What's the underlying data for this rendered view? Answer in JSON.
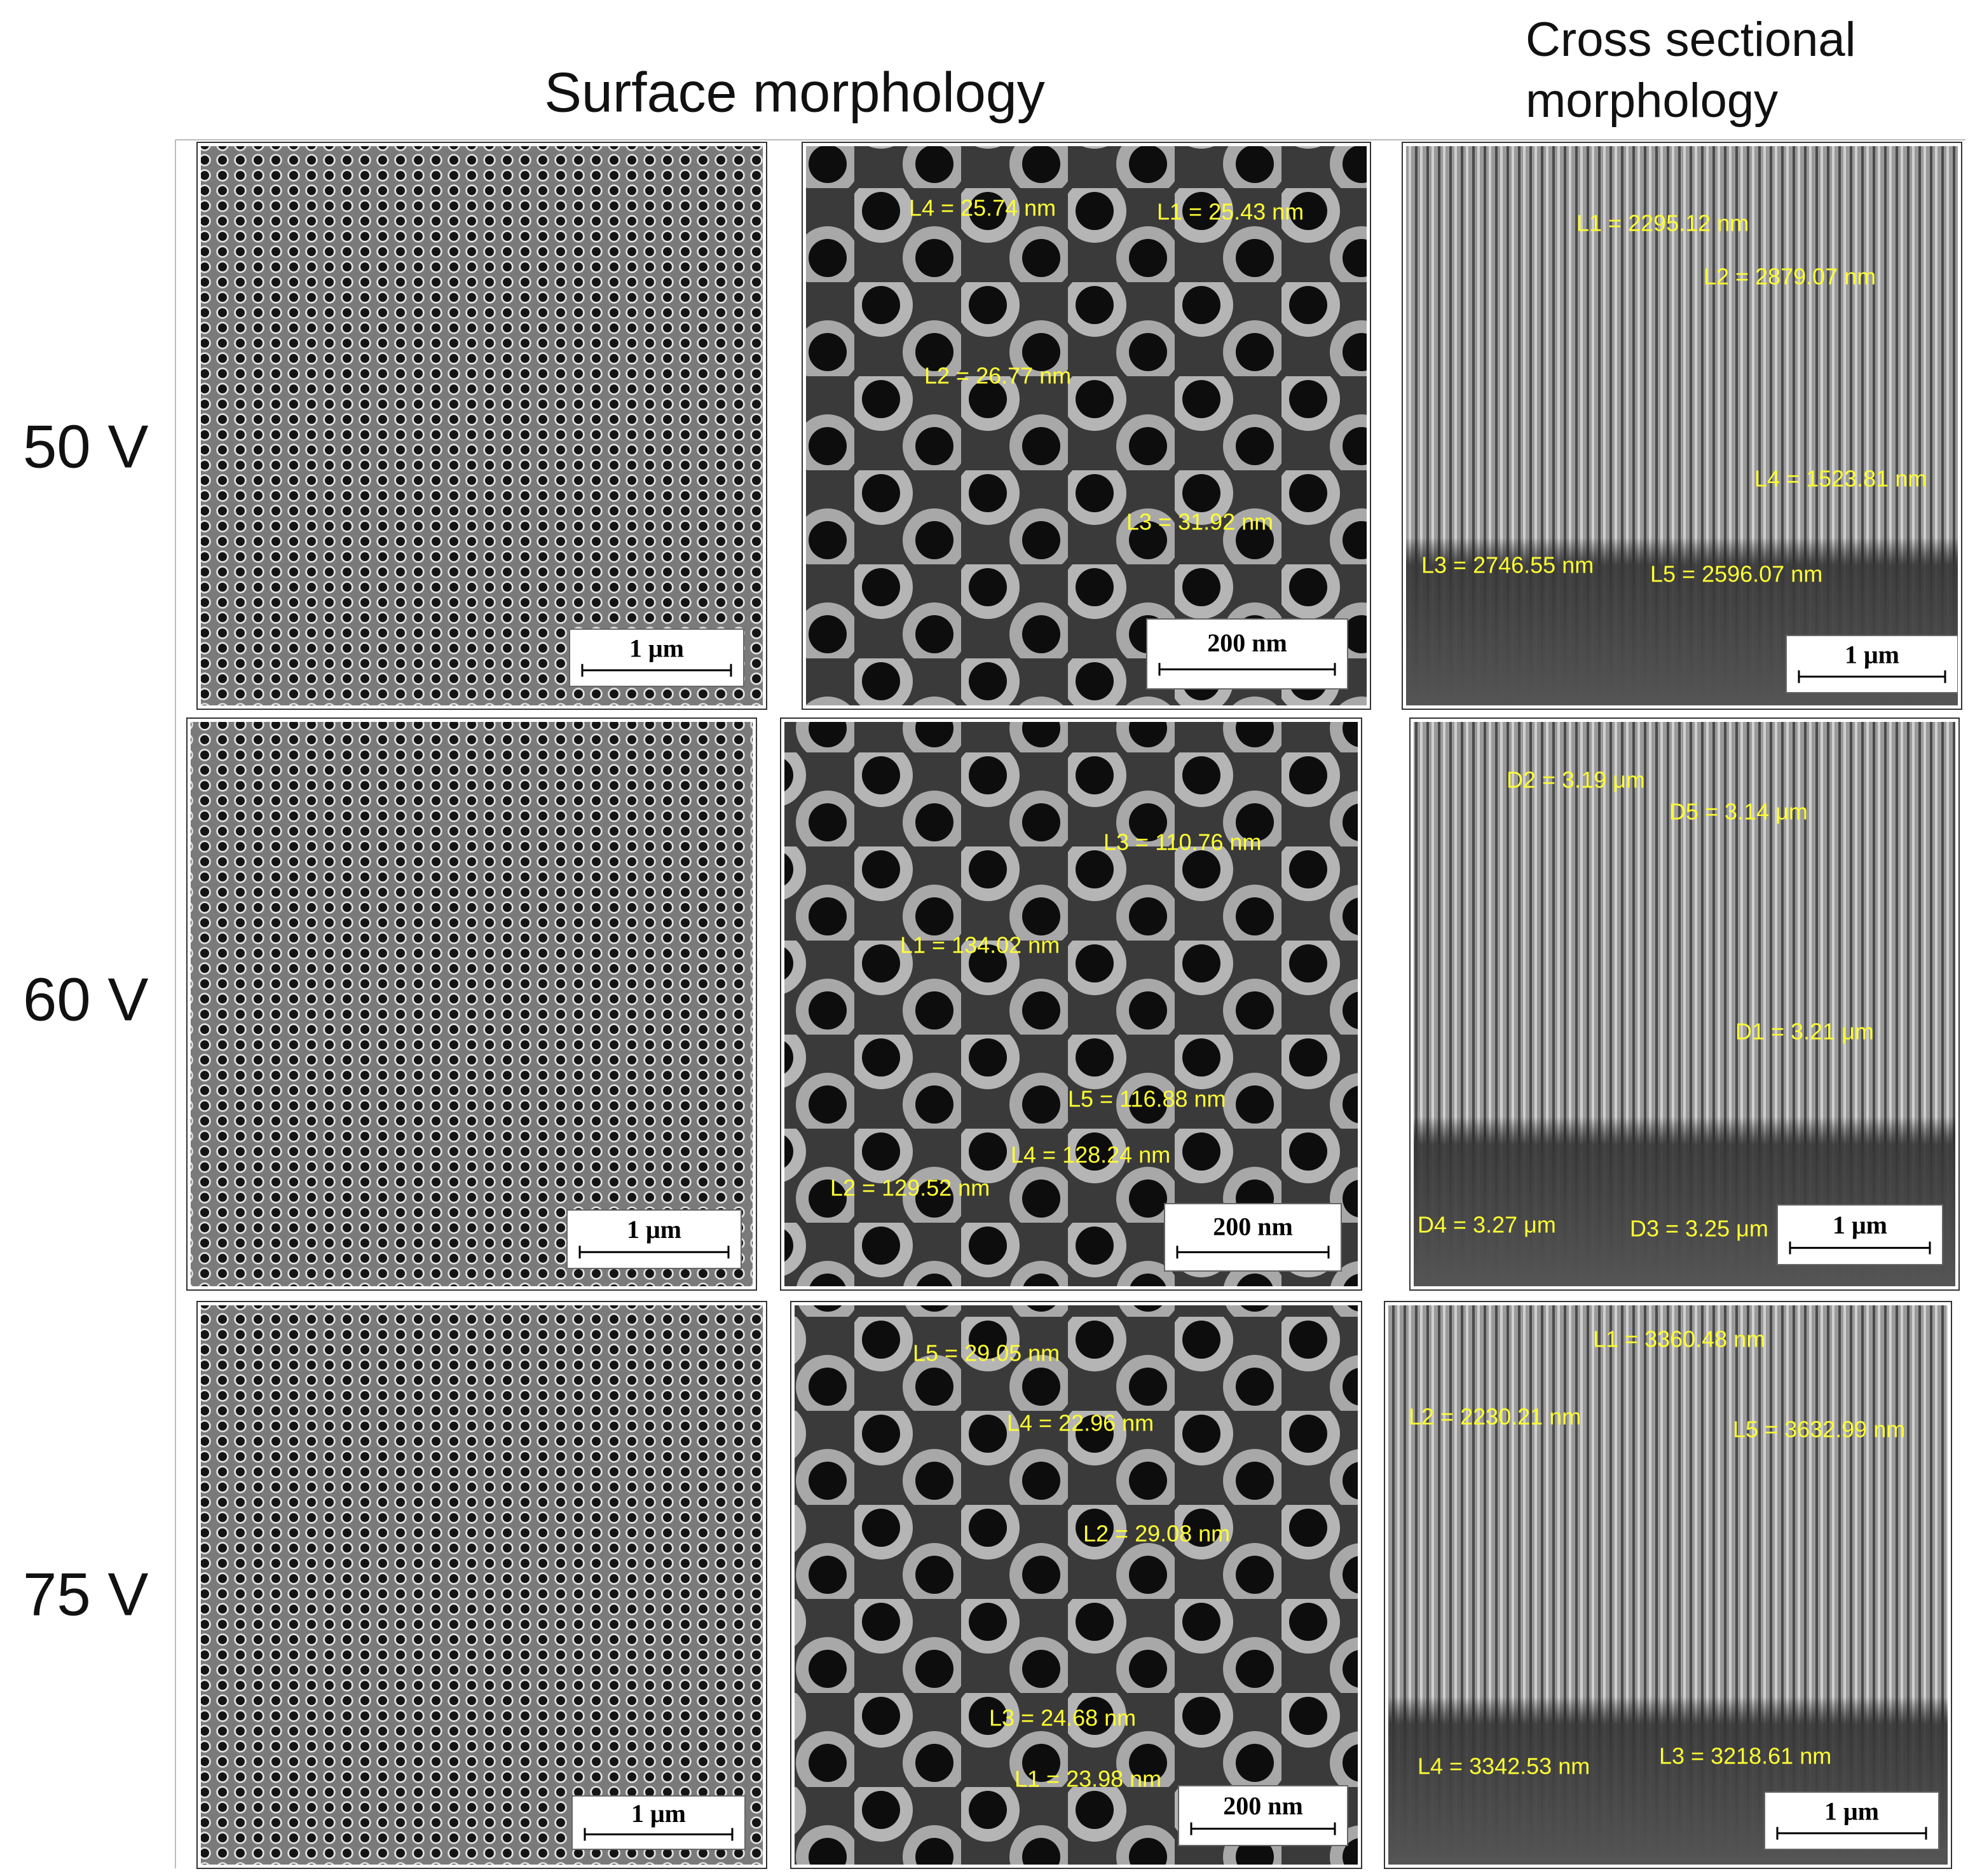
{
  "header": {
    "surface_title": "Surface morphology",
    "cross_section_title": [
      "Cross sectional",
      "morphology"
    ]
  },
  "rows": [
    {
      "label": "50 V",
      "panels": [
        {
          "scale_bar": "1 μm"
        },
        {
          "scale_bar": "200 nm",
          "measurements": [
            "L4 = 25.74 nm",
            "L1 = 25.43 nm",
            "L2 = 26.77 nm",
            "L3 = 31.92 nm"
          ]
        },
        {
          "scale_bar": "1 μm",
          "measurements": [
            "L1 = 2295.12 nm",
            "L2 = 2879.07 nm",
            "L4 = 1523.81 nm",
            "L3 = 2746.55 nm",
            "L5 = 2596.07 nm"
          ]
        }
      ]
    },
    {
      "label": "60 V",
      "panels": [
        {
          "scale_bar": "1 μm"
        },
        {
          "scale_bar": "200 nm",
          "measurements": [
            "L3 = 110.76 nm",
            "L1 = 134.02 nm",
            "L5 = 116.88 nm",
            "L4 = 128.24 nm",
            "L2 = 129.52 nm"
          ]
        },
        {
          "scale_bar": "1 μm",
          "measurements": [
            "D2 = 3.19 μm",
            "D5 = 3.14 μm",
            "D1 = 3.21 μm",
            "D4 = 3.27 μm",
            "D3 = 3.25 μm"
          ]
        }
      ]
    },
    {
      "label": "75 V",
      "panels": [
        {
          "scale_bar": "1 μm"
        },
        {
          "scale_bar": "200 nm",
          "measurements": [
            "L5 = 29.05 nm",
            "L4 = 22.96 nm",
            "L2 = 29.08 nm",
            "L3 = 24.68 nm",
            "L1 = 23.98 nm"
          ]
        },
        {
          "scale_bar": "1 μm",
          "measurements": [
            "L1 = 3360.48 nm",
            "L2 = 2230.21 nm",
            "L5 = 3632.99 nm",
            "L4 = 3342.53 nm",
            "L3 = 3218.61 nm"
          ]
        }
      ]
    }
  ]
}
